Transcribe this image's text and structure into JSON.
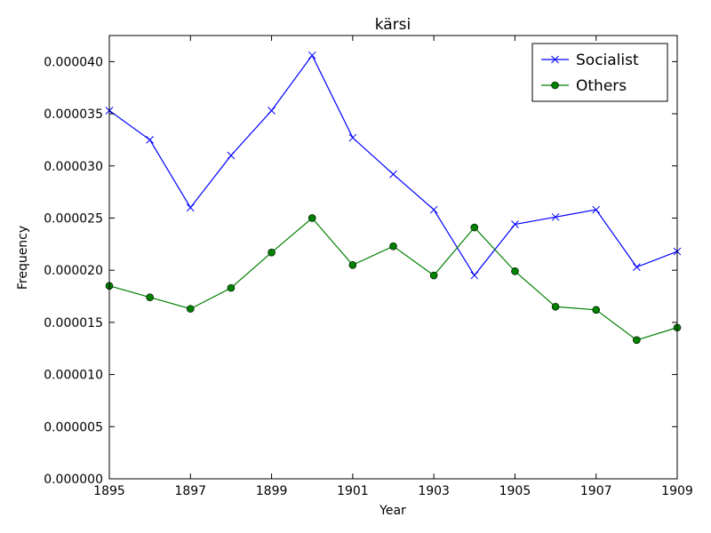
{
  "chart_data": {
    "type": "line",
    "title": "kärsi",
    "xlabel": "Year",
    "ylabel": "Frequency",
    "xlim": [
      1895,
      1909
    ],
    "ylim": [
      0,
      4.25e-05
    ],
    "xticks": [
      "1895",
      "1897",
      "1899",
      "1901",
      "1903",
      "1905",
      "1907",
      "1909"
    ],
    "yticks": [
      "0.000000",
      "0.000005",
      "0.000010",
      "0.000015",
      "0.000020",
      "0.000025",
      "0.000030",
      "0.000035",
      "0.000040"
    ],
    "grid": false,
    "legend_position": "top-right",
    "x": [
      1895,
      1896,
      1897,
      1898,
      1899,
      1900,
      1901,
      1902,
      1903,
      1904,
      1905,
      1906,
      1907,
      1908,
      1909
    ],
    "series": [
      {
        "name": "Socialist",
        "color": "#0000ff",
        "marker": "x",
        "values": [
          3.53e-05,
          3.25e-05,
          2.6e-05,
          3.1e-05,
          3.53e-05,
          4.06e-05,
          3.27e-05,
          2.92e-05,
          2.58e-05,
          1.95e-05,
          2.44e-05,
          2.51e-05,
          2.58e-05,
          2.03e-05,
          2.18e-05
        ]
      },
      {
        "name": "Others",
        "color": "#008000",
        "marker": "circle",
        "values": [
          1.85e-05,
          1.74e-05,
          1.63e-05,
          1.83e-05,
          2.17e-05,
          2.5e-05,
          2.05e-05,
          2.23e-05,
          1.95e-05,
          2.41e-05,
          1.99e-05,
          1.65e-05,
          1.62e-05,
          1.33e-05,
          1.45e-05
        ]
      }
    ]
  }
}
